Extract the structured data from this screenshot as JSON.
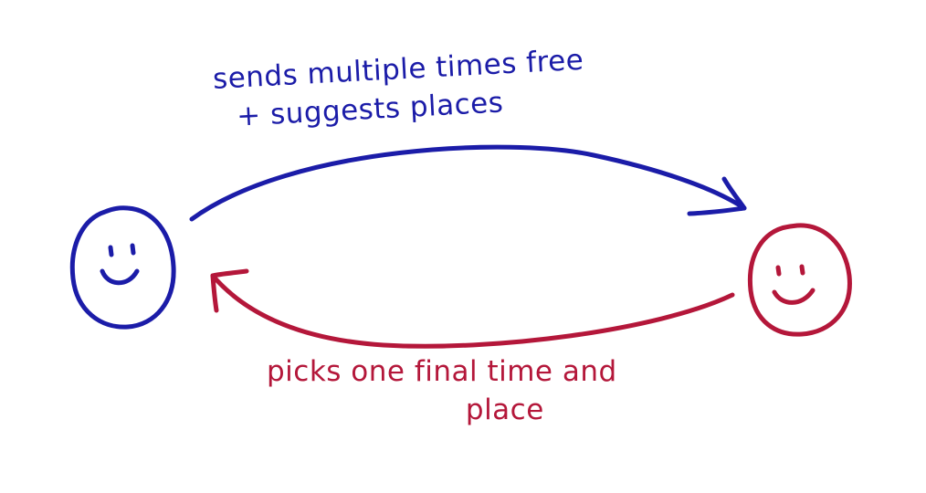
{
  "colors": {
    "sender": "#1b1ca8",
    "receiver": "#b4173a",
    "background": "#ffffff"
  },
  "icons": {
    "sender_face": "smiley-face-icon",
    "receiver_face": "smiley-face-icon"
  },
  "top_label": {
    "line1": "sends multiple times free",
    "line2": "+ suggests places"
  },
  "bottom_label": {
    "line1": "picks one final time and",
    "line2": "place"
  }
}
